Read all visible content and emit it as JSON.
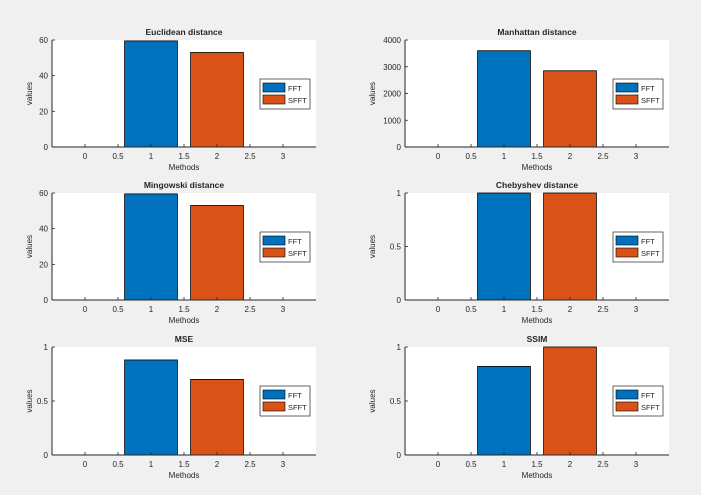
{
  "colors": {
    "fft": "#0072bd",
    "sfft": "#d95319",
    "background": "#f0f0f0",
    "axes": "#ffffff",
    "axis_line": "#262626"
  },
  "chart_data": [
    {
      "type": "bar",
      "title": "Euclidean distance",
      "xlabel": "Methods",
      "ylabel": "values",
      "xlim": [
        -0.5,
        3.5
      ],
      "ylim": [
        0,
        60
      ],
      "xticks": [
        "0",
        "0.5",
        "1",
        "1.5",
        "2",
        "2.5",
        "3"
      ],
      "yticks": [
        "0",
        "20",
        "40",
        "60"
      ],
      "series": [
        {
          "name": "FFT",
          "x": 1,
          "value": 59.5
        },
        {
          "name": "SFFT",
          "x": 2,
          "value": 53
        }
      ],
      "legend": "right"
    },
    {
      "type": "bar",
      "title": "Manhattan distance",
      "xlabel": "Methods",
      "ylabel": "values",
      "xlim": [
        -0.5,
        3.5
      ],
      "ylim": [
        0,
        4000
      ],
      "xticks": [
        "0",
        "0.5",
        "1",
        "1.5",
        "2",
        "2.5",
        "3"
      ],
      "yticks": [
        "0",
        "1000",
        "2000",
        "3000",
        "4000"
      ],
      "series": [
        {
          "name": "FFT",
          "x": 1,
          "value": 3600
        },
        {
          "name": "SFFT",
          "x": 2,
          "value": 2850
        }
      ],
      "legend": "right"
    },
    {
      "type": "bar",
      "title": "Mingowski distance",
      "xlabel": "Methods",
      "ylabel": "values",
      "xlim": [
        -0.5,
        3.5
      ],
      "ylim": [
        0,
        60
      ],
      "xticks": [
        "0",
        "0.5",
        "1",
        "1.5",
        "2",
        "2.5",
        "3"
      ],
      "yticks": [
        "0",
        "20",
        "40",
        "60"
      ],
      "series": [
        {
          "name": "FFT",
          "x": 1,
          "value": 59.5
        },
        {
          "name": "SFFT",
          "x": 2,
          "value": 53
        }
      ],
      "legend": "right"
    },
    {
      "type": "bar",
      "title": "Chebyshev distance",
      "xlabel": "Methods",
      "ylabel": "values",
      "xlim": [
        -0.5,
        3.5
      ],
      "ylim": [
        0,
        1
      ],
      "xticks": [
        "0",
        "0.5",
        "1",
        "1.5",
        "2",
        "2.5",
        "3"
      ],
      "yticks": [
        "0",
        "0.5",
        "1"
      ],
      "series": [
        {
          "name": "FFT",
          "x": 1,
          "value": 1
        },
        {
          "name": "SFFT",
          "x": 2,
          "value": 1
        }
      ],
      "legend": "right"
    },
    {
      "type": "bar",
      "title": "MSE",
      "xlabel": "Methods",
      "ylabel": "values",
      "xlim": [
        -0.5,
        3.5
      ],
      "ylim": [
        0,
        1
      ],
      "xticks": [
        "0",
        "0.5",
        "1",
        "1.5",
        "2",
        "2.5",
        "3"
      ],
      "yticks": [
        "0",
        "0.5",
        "1"
      ],
      "series": [
        {
          "name": "FFT",
          "x": 1,
          "value": 0.88
        },
        {
          "name": "SFFT",
          "x": 2,
          "value": 0.7
        }
      ],
      "legend": "right"
    },
    {
      "type": "bar",
      "title": "SSIM",
      "xlabel": "Methods",
      "ylabel": "values",
      "xlim": [
        -0.5,
        3.5
      ],
      "ylim": [
        0,
        1
      ],
      "xticks": [
        "0",
        "0.5",
        "1",
        "1.5",
        "2",
        "2.5",
        "3"
      ],
      "yticks": [
        "0",
        "0.5",
        "1"
      ],
      "series": [
        {
          "name": "FFT",
          "x": 1,
          "value": 0.82
        },
        {
          "name": "SFFT",
          "x": 2,
          "value": 1
        }
      ],
      "legend": "right"
    }
  ]
}
